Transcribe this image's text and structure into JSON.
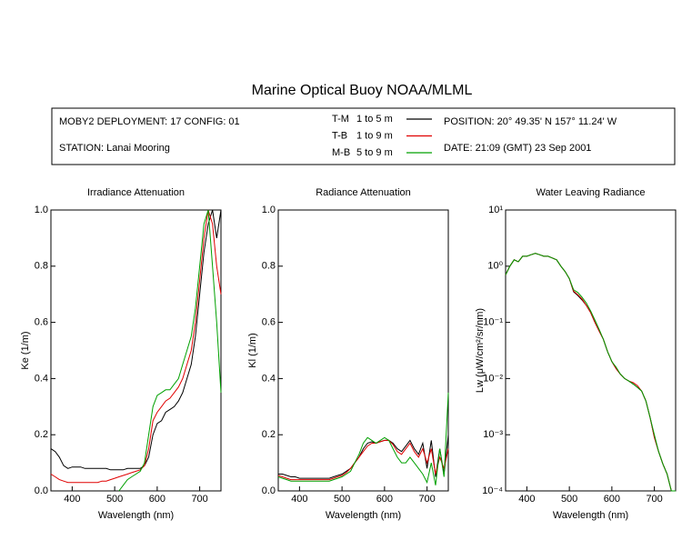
{
  "header": {
    "title": "Marine Optical Buoy NOAA/MLML",
    "deployment": "MOBY2 DEPLOYMENT: 17 CONFIG: 01",
    "station": "STATION: Lanai Mooring",
    "position": "POSITION: 20° 49.35' N   157° 11.24' W",
    "date": "DATE: 21:09 (GMT) 23 Sep 2001"
  },
  "chart_data": [
    {
      "type": "line",
      "title": "Irradiance Attenuation",
      "x_label": "Wavelength (nm)",
      "y_label": "Ke  (1/m)",
      "x": [
        350,
        360,
        370,
        380,
        390,
        400,
        410,
        420,
        430,
        440,
        450,
        460,
        470,
        480,
        490,
        500,
        510,
        520,
        530,
        540,
        550,
        560,
        570,
        580,
        590,
        600,
        610,
        620,
        630,
        640,
        650,
        660,
        670,
        680,
        690,
        700,
        710,
        720,
        730,
        740,
        750
      ],
      "xlim": [
        350,
        750
      ],
      "xticks": [
        400,
        500,
        600,
        700
      ],
      "ylim": [
        0,
        1
      ],
      "yticks": [
        {
          "value": 0,
          "label": "0.0"
        },
        0.2,
        0.4,
        0.6,
        0.8,
        {
          "value": 1,
          "label": "1.0"
        }
      ],
      "series": [
        {
          "name": "T-M",
          "depth": "1 to 5  m",
          "color": "#000000",
          "values": [
            0.15,
            0.14,
            0.12,
            0.09,
            0.08,
            0.085,
            0.085,
            0.085,
            0.08,
            0.08,
            0.08,
            0.08,
            0.08,
            0.08,
            0.075,
            0.075,
            0.075,
            0.075,
            0.08,
            0.08,
            0.08,
            0.08,
            0.09,
            0.12,
            0.2,
            0.24,
            0.25,
            0.28,
            0.29,
            0.3,
            0.32,
            0.35,
            0.4,
            0.45,
            0.55,
            0.7,
            0.85,
            0.95,
            1.0,
            0.9,
            1.0
          ]
        },
        {
          "name": "T-B",
          "depth": "1 to 9  m",
          "color": "#e00000",
          "values": [
            0.06,
            0.05,
            0.04,
            0.035,
            0.03,
            0.03,
            0.03,
            0.03,
            0.03,
            0.03,
            0.03,
            0.03,
            0.035,
            0.035,
            0.04,
            0.045,
            0.05,
            0.055,
            0.06,
            0.065,
            0.07,
            0.075,
            0.09,
            0.15,
            0.25,
            0.28,
            0.3,
            0.32,
            0.33,
            0.35,
            0.37,
            0.4,
            0.45,
            0.5,
            0.6,
            0.75,
            0.9,
            1.0,
            0.95,
            0.8,
            0.7
          ]
        },
        {
          "name": "M-B",
          "depth": "5 to 9  m",
          "color": "#00a000",
          "values": [
            null,
            null,
            null,
            null,
            null,
            null,
            null,
            null,
            null,
            null,
            null,
            null,
            null,
            null,
            null,
            null,
            0.0,
            0.02,
            0.04,
            0.05,
            0.06,
            0.07,
            0.1,
            0.2,
            0.3,
            0.34,
            0.35,
            0.36,
            0.36,
            0.38,
            0.4,
            0.45,
            0.5,
            0.55,
            0.65,
            0.8,
            0.95,
            1.0,
            0.8,
            0.6,
            0.35
          ]
        }
      ]
    },
    {
      "type": "line",
      "title": "Radiance Attenuation",
      "x_label": "Wavelength (nm)",
      "y_label": "Kl  (1/m)",
      "x": [
        350,
        360,
        370,
        380,
        390,
        400,
        410,
        420,
        430,
        440,
        450,
        460,
        470,
        480,
        490,
        500,
        510,
        520,
        530,
        540,
        550,
        560,
        570,
        580,
        590,
        600,
        610,
        620,
        630,
        640,
        650,
        660,
        670,
        680,
        690,
        700,
        710,
        720,
        730,
        740,
        750
      ],
      "xlim": [
        350,
        750
      ],
      "xticks": [
        400,
        500,
        600,
        700
      ],
      "ylim": [
        0,
        1
      ],
      "yticks": [
        {
          "value": 0,
          "label": "0.0"
        },
        0.2,
        0.4,
        0.6,
        0.8,
        {
          "value": 1,
          "label": "1.0"
        }
      ],
      "series": [
        {
          "color": "#000000",
          "values": [
            0.06,
            0.06,
            0.055,
            0.05,
            0.05,
            0.045,
            0.045,
            0.045,
            0.045,
            0.045,
            0.045,
            0.045,
            0.045,
            0.05,
            0.055,
            0.06,
            0.07,
            0.08,
            0.1,
            0.12,
            0.15,
            0.17,
            0.175,
            0.17,
            0.175,
            0.18,
            0.18,
            0.17,
            0.15,
            0.14,
            0.16,
            0.18,
            0.15,
            0.13,
            0.17,
            0.08,
            0.18,
            0.05,
            0.15,
            0.06,
            0.2
          ]
        },
        {
          "color": "#e00000",
          "values": [
            0.055,
            0.05,
            0.045,
            0.04,
            0.04,
            0.04,
            0.04,
            0.04,
            0.04,
            0.04,
            0.04,
            0.04,
            0.04,
            0.045,
            0.05,
            0.055,
            0.065,
            0.08,
            0.1,
            0.12,
            0.14,
            0.16,
            0.17,
            0.17,
            0.175,
            0.18,
            0.18,
            0.165,
            0.14,
            0.13,
            0.15,
            0.17,
            0.14,
            0.12,
            0.15,
            0.1,
            0.15,
            0.06,
            0.12,
            0.08,
            0.15
          ]
        },
        {
          "color": "#00a000",
          "values": [
            0.05,
            0.045,
            0.04,
            0.035,
            0.035,
            0.035,
            0.035,
            0.035,
            0.035,
            0.035,
            0.035,
            0.035,
            0.035,
            0.04,
            0.045,
            0.05,
            0.06,
            0.07,
            0.1,
            0.13,
            0.17,
            0.19,
            0.18,
            0.17,
            0.18,
            0.19,
            0.18,
            0.15,
            0.12,
            0.1,
            0.1,
            0.12,
            0.1,
            0.08,
            0.06,
            0.03,
            0.1,
            0.02,
            0.15,
            0.05,
            0.35
          ]
        }
      ]
    },
    {
      "type": "line",
      "title": "Water Leaving Radiance",
      "x_label": "Wavelength (nm)",
      "y_label": "Lw  (μW/cm²/sr/nm)",
      "yscale": "log",
      "x": [
        350,
        360,
        370,
        380,
        390,
        400,
        410,
        420,
        430,
        440,
        450,
        460,
        470,
        480,
        490,
        500,
        510,
        520,
        530,
        540,
        550,
        560,
        570,
        580,
        590,
        600,
        610,
        620,
        630,
        640,
        650,
        660,
        670,
        680,
        690,
        700,
        710,
        720,
        730,
        740,
        750
      ],
      "xlim": [
        350,
        750
      ],
      "xticks": [
        400,
        500,
        600,
        700
      ],
      "ylim": [
        0.0001,
        10
      ],
      "yticks": [
        {
          "value": 0.0001,
          "label": "10⁻⁴"
        },
        {
          "value": 0.001,
          "label": "10⁻³"
        },
        {
          "value": 0.01,
          "label": "10⁻²"
        },
        {
          "value": 0.1,
          "label": "10⁻¹"
        },
        {
          "value": 1,
          "label": "10⁰"
        },
        {
          "value": 10,
          "label": "10¹"
        }
      ],
      "series": [
        {
          "color": "#000000",
          "values": [
            0.7,
            1.0,
            1.3,
            1.2,
            1.5,
            1.5,
            1.6,
            1.7,
            1.6,
            1.5,
            1.5,
            1.4,
            1.3,
            1.0,
            0.8,
            0.6,
            0.35,
            0.3,
            0.25,
            0.2,
            0.15,
            0.1,
            0.07,
            0.05,
            0.03,
            0.02,
            0.015,
            0.012,
            0.01,
            0.009,
            0.008,
            0.007,
            0.006,
            0.004,
            0.002,
            0.0009,
            0.0005,
            0.0003,
            0.0002,
            0.0001,
            0.0001
          ]
        },
        {
          "color": "#e00000",
          "values": [
            0.7,
            1.0,
            1.3,
            1.2,
            1.5,
            1.5,
            1.6,
            1.7,
            1.6,
            1.5,
            1.5,
            1.4,
            1.3,
            1.0,
            0.8,
            0.6,
            0.36,
            0.31,
            0.26,
            0.2,
            0.15,
            0.1,
            0.07,
            0.05,
            0.03,
            0.02,
            0.015,
            0.012,
            0.01,
            0.009,
            0.0085,
            0.0075,
            0.006,
            0.004,
            0.002,
            0.0009,
            0.0005,
            0.0003,
            0.0002,
            0.0001,
            0.0001
          ]
        },
        {
          "color": "#00a000",
          "values": [
            0.7,
            1.0,
            1.3,
            1.2,
            1.5,
            1.5,
            1.6,
            1.7,
            1.6,
            1.5,
            1.5,
            1.4,
            1.3,
            1.0,
            0.8,
            0.6,
            0.38,
            0.34,
            0.28,
            0.22,
            0.16,
            0.11,
            0.075,
            0.05,
            0.03,
            0.02,
            0.016,
            0.012,
            0.01,
            0.009,
            0.008,
            0.007,
            0.006,
            0.004,
            0.002,
            0.001,
            0.0005,
            0.0003,
            0.0002,
            0.0001,
            0.0001
          ]
        }
      ]
    }
  ]
}
